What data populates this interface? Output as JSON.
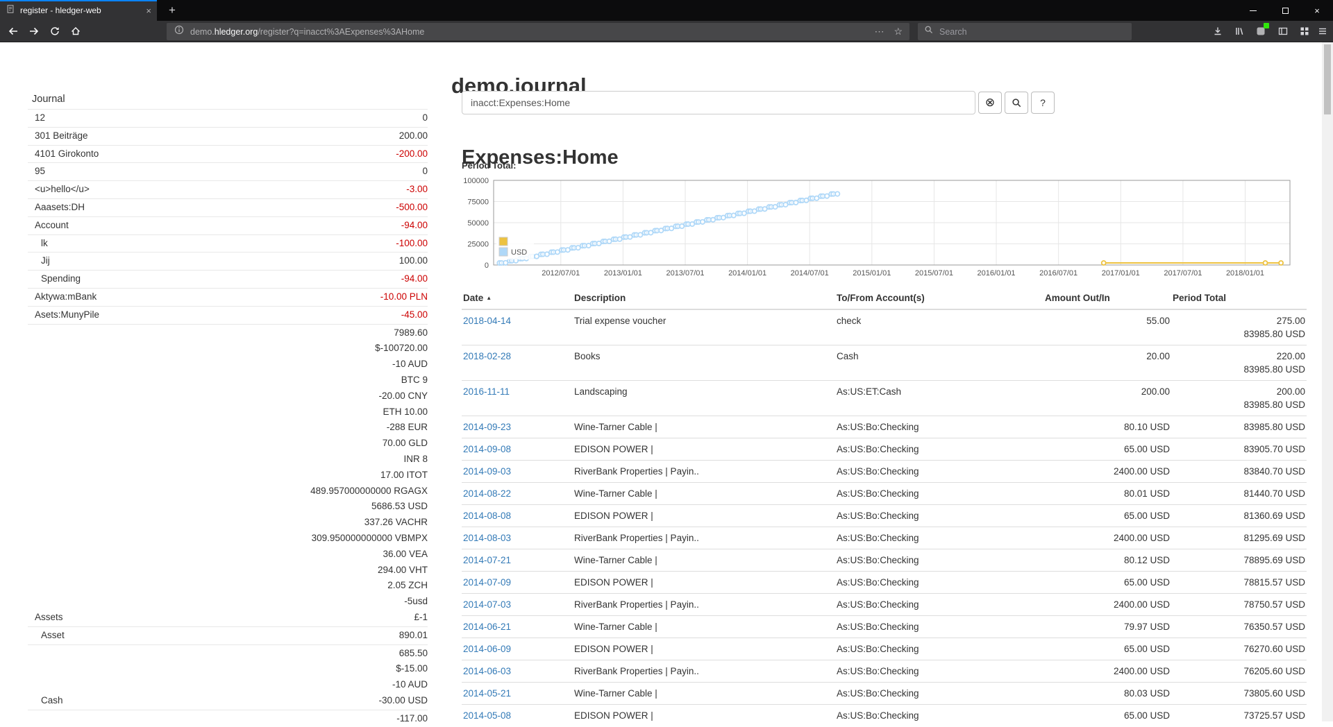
{
  "browser": {
    "tab_title": "register - hledger-web",
    "tab_close": "×",
    "new_tab_label": "+",
    "window_close": "×",
    "url": {
      "prefix": "demo.",
      "domain": "hledger.org",
      "path": "/register?q=inacct%3AExpenses%3AHome"
    },
    "overflow_icon": "⋯",
    "bookmark_star": "☆",
    "search_placeholder": "Search"
  },
  "page": {
    "title": "demo.journal",
    "query_value": "inacct:Expenses:Home",
    "clear_icon": "⊗",
    "help_label": "?",
    "heading": "Expenses:Home",
    "period_total_label": "Period Total:"
  },
  "sidebar": {
    "title": "Journal",
    "accounts": [
      {
        "name": "12",
        "indent": 1,
        "lines": [
          {
            "t": "0",
            "neg": false
          }
        ]
      },
      {
        "name": "301 Beiträge",
        "indent": 1,
        "lines": [
          {
            "t": "200.00",
            "neg": false
          }
        ]
      },
      {
        "name": "4101 Girokonto",
        "indent": 1,
        "lines": [
          {
            "t": "-200.00",
            "neg": true
          }
        ]
      },
      {
        "name": "95",
        "indent": 1,
        "lines": [
          {
            "t": "0",
            "neg": false
          }
        ]
      },
      {
        "name": "<u>hello</u>",
        "indent": 1,
        "lines": [
          {
            "t": "-3.00",
            "neg": true
          }
        ]
      },
      {
        "name": "Aaasets:DH",
        "indent": 1,
        "lines": [
          {
            "t": "-500.00",
            "neg": true
          }
        ]
      },
      {
        "name": "Account",
        "indent": 1,
        "lines": [
          {
            "t": "-94.00",
            "neg": true
          }
        ]
      },
      {
        "name": "lk",
        "indent": 2,
        "lines": [
          {
            "t": "-100.00",
            "neg": true
          }
        ]
      },
      {
        "name": "Jij",
        "indent": 2,
        "lines": [
          {
            "t": "100.00",
            "neg": false
          }
        ]
      },
      {
        "name": "Spending",
        "indent": 2,
        "lines": [
          {
            "t": "-94.00",
            "neg": true
          }
        ]
      },
      {
        "name": "Aktywa:mBank",
        "indent": 1,
        "lines": [
          {
            "t": "-10.00 PLN",
            "neg": true
          }
        ]
      },
      {
        "name": "Asets:MunyPile",
        "indent": 1,
        "lines": [
          {
            "t": "-45.00",
            "neg": true
          }
        ]
      },
      {
        "name": "Assets",
        "indent": 1,
        "lines": [
          {
            "t": "7989.60",
            "neg": false
          },
          {
            "t": "$-100720.00",
            "neg": false
          },
          {
            "t": "-10 AUD",
            "neg": false
          },
          {
            "t": "BTC 9",
            "neg": false
          },
          {
            "t": "-20.00 CNY",
            "neg": false
          },
          {
            "t": "ETH 10.00",
            "neg": false
          },
          {
            "t": "-288 EUR",
            "neg": false
          },
          {
            "t": "70.00 GLD",
            "neg": false
          },
          {
            "t": "INR 8",
            "neg": false
          },
          {
            "t": "17.00 ITOT",
            "neg": false
          },
          {
            "t": "489.957000000000 RGAGX",
            "neg": false
          },
          {
            "t": "5686.53 USD",
            "neg": false
          },
          {
            "t": "337.26 VACHR",
            "neg": false
          },
          {
            "t": "309.950000000000 VBMPX",
            "neg": false
          },
          {
            "t": "36.00 VEA",
            "neg": false
          },
          {
            "t": "294.00 VHT",
            "neg": false
          },
          {
            "t": "2.05 ZCH",
            "neg": false
          },
          {
            "t": "-5usd",
            "neg": false
          },
          {
            "t": "£-1",
            "neg": false
          }
        ]
      },
      {
        "name": "Asset",
        "indent": 2,
        "lines": [
          {
            "t": "890.01",
            "neg": false
          }
        ]
      },
      {
        "name": "Cash",
        "indent": 2,
        "lines": [
          {
            "t": "685.50",
            "neg": false
          },
          {
            "t": "$-15.00",
            "neg": false
          },
          {
            "t": "-10 AUD",
            "neg": false
          },
          {
            "t": "-30.00 USD",
            "neg": false
          }
        ]
      },
      {
        "name": "",
        "indent": 2,
        "lines": [
          {
            "t": "-117.00",
            "neg": false
          }
        ]
      }
    ]
  },
  "chart_data": {
    "type": "scatter",
    "title": "Period Total:",
    "x_unit": "decimal_year",
    "xlim": [
      2011.96,
      2018.36
    ],
    "ylim": [
      0,
      100000
    ],
    "grid": true,
    "legend_position": "bottom-left",
    "y_ticks": [
      {
        "v": 0,
        "label": "0"
      },
      {
        "v": 25000,
        "label": "25000"
      },
      {
        "v": 50000,
        "label": "50000"
      },
      {
        "v": 75000,
        "label": "75000"
      },
      {
        "v": 100000,
        "label": "100000"
      }
    ],
    "x_ticks": [
      {
        "v": 2012.5,
        "label": "2012/07/01"
      },
      {
        "v": 2013.0,
        "label": "2013/01/01"
      },
      {
        "v": 2013.5,
        "label": "2013/07/01"
      },
      {
        "v": 2014.0,
        "label": "2014/01/01"
      },
      {
        "v": 2014.5,
        "label": "2014/07/01"
      },
      {
        "v": 2015.0,
        "label": "2015/01/01"
      },
      {
        "v": 2015.5,
        "label": "2015/07/01"
      },
      {
        "v": 2016.0,
        "label": "2016/01/01"
      },
      {
        "v": 2016.5,
        "label": "2016/07/01"
      },
      {
        "v": 2017.0,
        "label": "2017/01/01"
      },
      {
        "v": 2017.5,
        "label": "2017/07/01"
      },
      {
        "v": 2018.0,
        "label": "2018/01/01"
      }
    ],
    "series": [
      {
        "name": "",
        "color": "#edc240",
        "style": "line-points",
        "points": [
          [
            2016.863,
            200
          ],
          [
            2018.162,
            220
          ],
          [
            2018.288,
            275
          ]
        ]
      },
      {
        "name": "USD",
        "color": "#afd8f8",
        "style": "points",
        "points": [
          [
            2012.007,
            2400
          ],
          [
            2012.023,
            2465
          ],
          [
            2012.056,
            2545
          ],
          [
            2012.09,
            4945
          ],
          [
            2012.106,
            5010
          ],
          [
            2012.139,
            5090
          ],
          [
            2012.174,
            7490
          ],
          [
            2012.19,
            7555
          ],
          [
            2012.223,
            7635
          ],
          [
            2012.257,
            10035
          ],
          [
            2012.273,
            10100
          ],
          [
            2012.306,
            10180
          ],
          [
            2012.34,
            12580
          ],
          [
            2012.356,
            12645
          ],
          [
            2012.389,
            12725
          ],
          [
            2012.424,
            15125
          ],
          [
            2012.44,
            15190
          ],
          [
            2012.473,
            15270
          ],
          [
            2012.507,
            17670
          ],
          [
            2012.523,
            17735
          ],
          [
            2012.556,
            17815
          ],
          [
            2012.59,
            20215
          ],
          [
            2012.606,
            20280
          ],
          [
            2012.639,
            20360
          ],
          [
            2012.674,
            22760
          ],
          [
            2012.69,
            22825
          ],
          [
            2012.723,
            22905
          ],
          [
            2012.757,
            25305
          ],
          [
            2012.773,
            25370
          ],
          [
            2012.806,
            25450
          ],
          [
            2012.84,
            27850
          ],
          [
            2012.856,
            27915
          ],
          [
            2012.889,
            27995
          ],
          [
            2012.924,
            30395
          ],
          [
            2012.94,
            30460
          ],
          [
            2012.973,
            30540
          ],
          [
            2013.007,
            32940
          ],
          [
            2013.023,
            33005
          ],
          [
            2013.056,
            33085
          ],
          [
            2013.09,
            35485
          ],
          [
            2013.106,
            35550
          ],
          [
            2013.139,
            35630
          ],
          [
            2013.174,
            38030
          ],
          [
            2013.19,
            38095
          ],
          [
            2013.223,
            38175
          ],
          [
            2013.257,
            40575
          ],
          [
            2013.273,
            40640
          ],
          [
            2013.306,
            40720
          ],
          [
            2013.34,
            43120
          ],
          [
            2013.356,
            43185
          ],
          [
            2013.389,
            43265
          ],
          [
            2013.424,
            45665
          ],
          [
            2013.44,
            45730
          ],
          [
            2013.473,
            45810
          ],
          [
            2013.507,
            48210
          ],
          [
            2013.523,
            48275
          ],
          [
            2013.556,
            48355
          ],
          [
            2013.59,
            50755
          ],
          [
            2013.606,
            50820
          ],
          [
            2013.639,
            50900
          ],
          [
            2013.674,
            53300
          ],
          [
            2013.69,
            53365
          ],
          [
            2013.723,
            53445
          ],
          [
            2013.757,
            55845
          ],
          [
            2013.773,
            55910
          ],
          [
            2013.806,
            55990
          ],
          [
            2013.84,
            58390
          ],
          [
            2013.856,
            58455
          ],
          [
            2013.889,
            58535
          ],
          [
            2013.924,
            60935
          ],
          [
            2013.94,
            61000
          ],
          [
            2013.973,
            61080
          ],
          [
            2014.007,
            63480
          ],
          [
            2014.023,
            63545
          ],
          [
            2014.056,
            63625
          ],
          [
            2014.09,
            66025
          ],
          [
            2014.106,
            66090
          ],
          [
            2014.139,
            66170
          ],
          [
            2014.174,
            68570
          ],
          [
            2014.19,
            68635
          ],
          [
            2014.223,
            68715
          ],
          [
            2014.257,
            71115
          ],
          [
            2014.273,
            71180
          ],
          [
            2014.306,
            71260
          ],
          [
            2014.34,
            73661
          ],
          [
            2014.356,
            73726
          ],
          [
            2014.389,
            73806
          ],
          [
            2014.424,
            76206
          ],
          [
            2014.44,
            76271
          ],
          [
            2014.473,
            76351
          ],
          [
            2014.507,
            78751
          ],
          [
            2014.523,
            78816
          ],
          [
            2014.556,
            78896
          ],
          [
            2014.59,
            81296
          ],
          [
            2014.606,
            81361
          ],
          [
            2014.639,
            81441
          ],
          [
            2014.674,
            83841
          ],
          [
            2014.69,
            83906
          ],
          [
            2014.723,
            83986
          ]
        ]
      }
    ]
  },
  "register": {
    "columns": [
      "Date",
      "Description",
      "To/From Account(s)",
      "Amount Out/In",
      "Period Total"
    ],
    "sort_icon": "▲",
    "rows": [
      {
        "date": "2018-04-14",
        "desc": "Trial expense voucher",
        "acct": "check",
        "amt": "55.00",
        "tot": [
          "275.00",
          "83985.80 USD"
        ]
      },
      {
        "date": "2018-02-28",
        "desc": "Books",
        "acct": "Cash",
        "amt": "20.00",
        "tot": [
          "220.00",
          "83985.80 USD"
        ]
      },
      {
        "date": "2016-11-11",
        "desc": "Landscaping",
        "acct": "As:US:ET:Cash",
        "amt": "200.00",
        "tot": [
          "200.00",
          "83985.80 USD"
        ]
      },
      {
        "date": "2014-09-23",
        "desc": "Wine-Tarner Cable |",
        "acct": "As:US:Bo:Checking",
        "amt": "80.10 USD",
        "tot": [
          "83985.80 USD"
        ]
      },
      {
        "date": "2014-09-08",
        "desc": "EDISON POWER |",
        "acct": "As:US:Bo:Checking",
        "amt": "65.00 USD",
        "tot": [
          "83905.70 USD"
        ]
      },
      {
        "date": "2014-09-03",
        "desc": "RiverBank Properties | Payin..",
        "acct": "As:US:Bo:Checking",
        "amt": "2400.00 USD",
        "tot": [
          "83840.70 USD"
        ]
      },
      {
        "date": "2014-08-22",
        "desc": "Wine-Tarner Cable |",
        "acct": "As:US:Bo:Checking",
        "amt": "80.01 USD",
        "tot": [
          "81440.70 USD"
        ]
      },
      {
        "date": "2014-08-08",
        "desc": "EDISON POWER |",
        "acct": "As:US:Bo:Checking",
        "amt": "65.00 USD",
        "tot": [
          "81360.69 USD"
        ]
      },
      {
        "date": "2014-08-03",
        "desc": "RiverBank Properties | Payin..",
        "acct": "As:US:Bo:Checking",
        "amt": "2400.00 USD",
        "tot": [
          "81295.69 USD"
        ]
      },
      {
        "date": "2014-07-21",
        "desc": "Wine-Tarner Cable |",
        "acct": "As:US:Bo:Checking",
        "amt": "80.12 USD",
        "tot": [
          "78895.69 USD"
        ]
      },
      {
        "date": "2014-07-09",
        "desc": "EDISON POWER |",
        "acct": "As:US:Bo:Checking",
        "amt": "65.00 USD",
        "tot": [
          "78815.57 USD"
        ]
      },
      {
        "date": "2014-07-03",
        "desc": "RiverBank Properties | Payin..",
        "acct": "As:US:Bo:Checking",
        "amt": "2400.00 USD",
        "tot": [
          "78750.57 USD"
        ]
      },
      {
        "date": "2014-06-21",
        "desc": "Wine-Tarner Cable |",
        "acct": "As:US:Bo:Checking",
        "amt": "79.97 USD",
        "tot": [
          "76350.57 USD"
        ]
      },
      {
        "date": "2014-06-09",
        "desc": "EDISON POWER |",
        "acct": "As:US:Bo:Checking",
        "amt": "65.00 USD",
        "tot": [
          "76270.60 USD"
        ]
      },
      {
        "date": "2014-06-03",
        "desc": "RiverBank Properties | Payin..",
        "acct": "As:US:Bo:Checking",
        "amt": "2400.00 USD",
        "tot": [
          "76205.60 USD"
        ]
      },
      {
        "date": "2014-05-21",
        "desc": "Wine-Tarner Cable |",
        "acct": "As:US:Bo:Checking",
        "amt": "80.03 USD",
        "tot": [
          "73805.60 USD"
        ]
      },
      {
        "date": "2014-05-08",
        "desc": "EDISON POWER |",
        "acct": "As:US:Bo:Checking",
        "amt": "65.00 USD",
        "tot": [
          "73725.57 USD"
        ]
      }
    ]
  }
}
